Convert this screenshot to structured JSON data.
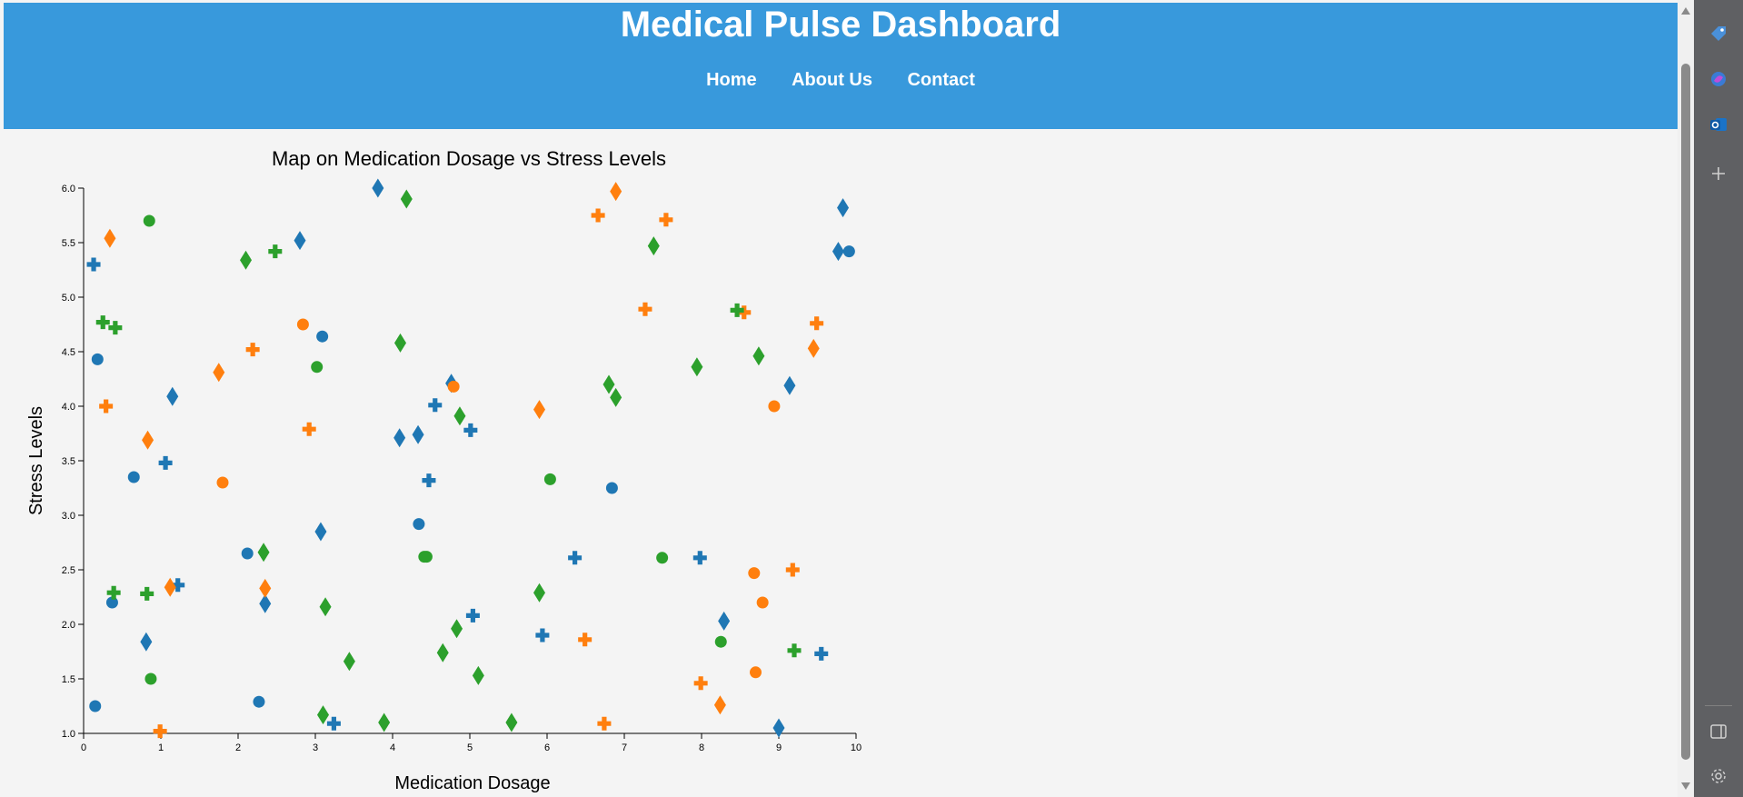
{
  "header": {
    "title": "Medical Pulse Dashboard",
    "nav": [
      {
        "label": "Home"
      },
      {
        "label": "About Us"
      },
      {
        "label": "Contact"
      }
    ]
  },
  "colors": {
    "header_bg": "#3899dc",
    "page_bg": "#f4f4f4",
    "series": [
      "#1f77b4",
      "#ff7f0e",
      "#2ca02c"
    ]
  },
  "side_panel": {
    "icons": [
      "tag-icon",
      "copilot-icon",
      "outlook-icon",
      "plus-icon",
      "sidebar-toggle-icon",
      "settings-icon"
    ]
  },
  "chart_data": {
    "type": "scatter",
    "title": "Map on Medication Dosage vs Stress Levels",
    "xlabel": "Medication Dosage",
    "ylabel": "Stress Levels",
    "xlim": [
      0,
      10
    ],
    "ylim": [
      1,
      6
    ],
    "xticks": [
      "0",
      "1",
      "2",
      "3",
      "4",
      "5",
      "6",
      "7",
      "8",
      "9",
      "10"
    ],
    "yticks": [
      "1.0",
      "1.5",
      "2.0",
      "2.5",
      "3.0",
      "3.5",
      "4.0",
      "4.5",
      "5.0",
      "5.5",
      "6.0"
    ],
    "grid": false,
    "legend": "none",
    "series": [
      {
        "color": "#1f77b4",
        "points": [
          {
            "x": 0.15,
            "y": 1.25,
            "s": "circle"
          },
          {
            "x": 0.18,
            "y": 4.43,
            "s": "circle"
          },
          {
            "x": 0.37,
            "y": 2.2,
            "s": "circle"
          },
          {
            "x": 0.65,
            "y": 3.35,
            "s": "circle"
          },
          {
            "x": 2.12,
            "y": 2.65,
            "s": "circle"
          },
          {
            "x": 2.27,
            "y": 1.29,
            "s": "circle"
          },
          {
            "x": 3.09,
            "y": 4.64,
            "s": "circle"
          },
          {
            "x": 4.34,
            "y": 2.92,
            "s": "circle"
          },
          {
            "x": 6.84,
            "y": 3.25,
            "s": "circle"
          },
          {
            "x": 9.91,
            "y": 5.42,
            "s": "circle"
          },
          {
            "x": 0.13,
            "y": 5.3,
            "s": "cross"
          },
          {
            "x": 1.06,
            "y": 3.48,
            "s": "cross"
          },
          {
            "x": 1.22,
            "y": 2.36,
            "s": "cross"
          },
          {
            "x": 3.24,
            "y": 1.09,
            "s": "cross"
          },
          {
            "x": 4.47,
            "y": 3.32,
            "s": "cross"
          },
          {
            "x": 4.55,
            "y": 4.01,
            "s": "cross"
          },
          {
            "x": 5.01,
            "y": 3.78,
            "s": "cross"
          },
          {
            "x": 5.04,
            "y": 2.08,
            "s": "cross"
          },
          {
            "x": 5.94,
            "y": 1.9,
            "s": "cross"
          },
          {
            "x": 6.36,
            "y": 2.61,
            "s": "cross"
          },
          {
            "x": 7.98,
            "y": 2.61,
            "s": "cross"
          },
          {
            "x": 9.55,
            "y": 1.73,
            "s": "cross"
          },
          {
            "x": 0.81,
            "y": 1.84,
            "s": "diamond"
          },
          {
            "x": 1.15,
            "y": 4.09,
            "s": "diamond"
          },
          {
            "x": 2.35,
            "y": 2.19,
            "s": "diamond"
          },
          {
            "x": 2.8,
            "y": 5.52,
            "s": "diamond"
          },
          {
            "x": 3.07,
            "y": 2.85,
            "s": "diamond"
          },
          {
            "x": 3.81,
            "y": 6.0,
            "s": "diamond"
          },
          {
            "x": 4.09,
            "y": 3.71,
            "s": "diamond"
          },
          {
            "x": 4.33,
            "y": 3.74,
            "s": "diamond"
          },
          {
            "x": 4.76,
            "y": 4.21,
            "s": "diamond"
          },
          {
            "x": 8.29,
            "y": 2.03,
            "s": "diamond"
          },
          {
            "x": 9.0,
            "y": 1.05,
            "s": "diamond"
          },
          {
            "x": 9.14,
            "y": 4.19,
            "s": "diamond"
          },
          {
            "x": 9.77,
            "y": 5.42,
            "s": "diamond"
          },
          {
            "x": 9.83,
            "y": 5.82,
            "s": "diamond"
          }
        ]
      },
      {
        "color": "#ff7f0e",
        "points": [
          {
            "x": 1.8,
            "y": 3.3,
            "s": "circle"
          },
          {
            "x": 2.84,
            "y": 4.75,
            "s": "circle"
          },
          {
            "x": 4.79,
            "y": 4.18,
            "s": "circle"
          },
          {
            "x": 8.68,
            "y": 2.47,
            "s": "circle"
          },
          {
            "x": 8.7,
            "y": 1.56,
            "s": "circle"
          },
          {
            "x": 8.79,
            "y": 2.2,
            "s": "circle"
          },
          {
            "x": 8.94,
            "y": 4.0,
            "s": "circle"
          },
          {
            "x": 0.29,
            "y": 4.0,
            "s": "cross"
          },
          {
            "x": 0.99,
            "y": 1.02,
            "s": "cross"
          },
          {
            "x": 2.19,
            "y": 4.52,
            "s": "cross"
          },
          {
            "x": 2.92,
            "y": 3.79,
            "s": "cross"
          },
          {
            "x": 6.49,
            "y": 1.86,
            "s": "cross"
          },
          {
            "x": 6.66,
            "y": 5.75,
            "s": "cross"
          },
          {
            "x": 6.74,
            "y": 1.09,
            "s": "cross"
          },
          {
            "x": 7.27,
            "y": 4.89,
            "s": "cross"
          },
          {
            "x": 7.54,
            "y": 5.71,
            "s": "cross"
          },
          {
            "x": 7.99,
            "y": 1.46,
            "s": "cross"
          },
          {
            "x": 8.55,
            "y": 4.86,
            "s": "cross"
          },
          {
            "x": 9.18,
            "y": 2.5,
            "s": "cross"
          },
          {
            "x": 9.49,
            "y": 4.76,
            "s": "cross"
          },
          {
            "x": 0.34,
            "y": 5.54,
            "s": "diamond"
          },
          {
            "x": 0.83,
            "y": 3.69,
            "s": "diamond"
          },
          {
            "x": 1.12,
            "y": 2.34,
            "s": "diamond"
          },
          {
            "x": 1.75,
            "y": 4.31,
            "s": "diamond"
          },
          {
            "x": 2.35,
            "y": 2.33,
            "s": "diamond"
          },
          {
            "x": 5.9,
            "y": 3.97,
            "s": "diamond"
          },
          {
            "x": 6.89,
            "y": 5.97,
            "s": "diamond"
          },
          {
            "x": 8.24,
            "y": 1.26,
            "s": "diamond"
          },
          {
            "x": 9.45,
            "y": 4.53,
            "s": "diamond"
          }
        ]
      },
      {
        "color": "#2ca02c",
        "points": [
          {
            "x": 0.85,
            "y": 5.7,
            "s": "circle"
          },
          {
            "x": 0.87,
            "y": 1.5,
            "s": "circle"
          },
          {
            "x": 3.02,
            "y": 4.36,
            "s": "circle"
          },
          {
            "x": 4.41,
            "y": 2.62,
            "s": "circle"
          },
          {
            "x": 4.44,
            "y": 2.62,
            "s": "circle"
          },
          {
            "x": 6.04,
            "y": 3.33,
            "s": "circle"
          },
          {
            "x": 7.49,
            "y": 2.61,
            "s": "circle"
          },
          {
            "x": 8.25,
            "y": 1.84,
            "s": "circle"
          },
          {
            "x": 0.25,
            "y": 4.77,
            "s": "cross"
          },
          {
            "x": 0.39,
            "y": 2.29,
            "s": "cross"
          },
          {
            "x": 0.41,
            "y": 4.72,
            "s": "cross"
          },
          {
            "x": 0.82,
            "y": 2.28,
            "s": "cross"
          },
          {
            "x": 2.48,
            "y": 5.42,
            "s": "cross"
          },
          {
            "x": 8.46,
            "y": 4.88,
            "s": "cross"
          },
          {
            "x": 9.2,
            "y": 1.76,
            "s": "cross"
          },
          {
            "x": 2.1,
            "y": 5.34,
            "s": "diamond"
          },
          {
            "x": 2.33,
            "y": 2.66,
            "s": "diamond"
          },
          {
            "x": 3.1,
            "y": 1.17,
            "s": "diamond"
          },
          {
            "x": 3.13,
            "y": 2.16,
            "s": "diamond"
          },
          {
            "x": 3.44,
            "y": 1.66,
            "s": "diamond"
          },
          {
            "x": 3.89,
            "y": 1.1,
            "s": "diamond"
          },
          {
            "x": 4.1,
            "y": 4.58,
            "s": "diamond"
          },
          {
            "x": 4.18,
            "y": 5.9,
            "s": "diamond"
          },
          {
            "x": 4.65,
            "y": 1.74,
            "s": "diamond"
          },
          {
            "x": 4.83,
            "y": 1.96,
            "s": "diamond"
          },
          {
            "x": 4.87,
            "y": 3.91,
            "s": "diamond"
          },
          {
            "x": 5.11,
            "y": 1.53,
            "s": "diamond"
          },
          {
            "x": 5.54,
            "y": 1.1,
            "s": "diamond"
          },
          {
            "x": 5.9,
            "y": 2.29,
            "s": "diamond"
          },
          {
            "x": 6.8,
            "y": 4.2,
            "s": "diamond"
          },
          {
            "x": 6.89,
            "y": 4.08,
            "s": "diamond"
          },
          {
            "x": 7.38,
            "y": 5.47,
            "s": "diamond"
          },
          {
            "x": 7.94,
            "y": 4.36,
            "s": "diamond"
          },
          {
            "x": 8.74,
            "y": 4.46,
            "s": "diamond"
          }
        ]
      }
    ]
  }
}
